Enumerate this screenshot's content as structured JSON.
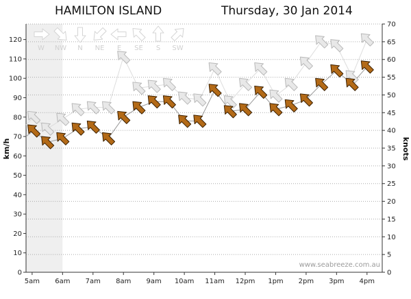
{
  "header": {
    "station": "HAMILTON ISLAND",
    "date": "Thursday, 30 Jan 2014"
  },
  "watermark": "www.seabreeze.com.au",
  "legend": {
    "directions": [
      "W",
      "NW",
      "N",
      "NE",
      "E",
      "SE",
      "S",
      "SW"
    ],
    "direction_degrees": [
      270,
      315,
      0,
      45,
      90,
      135,
      180,
      225
    ]
  },
  "chart_data": {
    "type": "line",
    "x_tick_labels": [
      "5am",
      "6am",
      "7am",
      "8am",
      "9am",
      "10am",
      "11am",
      "12pm",
      "1pm",
      "2pm",
      "3pm",
      "4pm"
    ],
    "xlim": [
      4.8,
      16.5
    ],
    "ylabel_left": "km/h",
    "ylabel_right": "knots",
    "ylim_left": [
      0,
      128
    ],
    "ylim_right": [
      0,
      70
    ],
    "yticks_left": [
      0,
      10,
      20,
      30,
      40,
      50,
      60,
      70,
      80,
      90,
      100,
      110,
      120
    ],
    "yticks_right": [
      0,
      5,
      10,
      15,
      20,
      25,
      30,
      35,
      40,
      45,
      50,
      55,
      60,
      65,
      70
    ],
    "grid": true,
    "shaded_range": [
      4.8,
      6.0
    ],
    "colors": {
      "average_arrow": "#b36a17",
      "gust_arrow": "#e8e8e8",
      "average_line": "#999999",
      "gust_line": "#dddddd",
      "shade": "#efefef",
      "grid": "#aaaaaa"
    },
    "series": [
      {
        "role": "average",
        "x": [
          4.8,
          5.05,
          5.5,
          6.0,
          6.5,
          7.0,
          7.5,
          8.0,
          8.5,
          9.0,
          9.5,
          10.0,
          10.5,
          11.0,
          11.5,
          12.0,
          12.5,
          13.0,
          13.5,
          14.0,
          14.5,
          15.0,
          15.5,
          16.0
        ],
        "y": [
          70,
          73,
          67,
          69,
          74,
          75,
          69,
          80,
          85,
          88,
          88,
          78,
          78,
          94,
          83,
          84,
          93,
          84,
          86,
          89,
          97,
          104,
          97,
          106
        ],
        "direction_deg": [
          135,
          135,
          135,
          135,
          135,
          135,
          135,
          135,
          135,
          135,
          135,
          135,
          135,
          135,
          135,
          135,
          135,
          135,
          135,
          135,
          135,
          135,
          135,
          135
        ]
      },
      {
        "role": "gust",
        "x": [
          4.8,
          5.05,
          5.5,
          6.0,
          6.5,
          7.0,
          7.5,
          8.0,
          8.5,
          9.0,
          9.5,
          10.0,
          10.5,
          11.0,
          11.5,
          12.0,
          12.5,
          13.0,
          13.5,
          14.0,
          14.5,
          15.0,
          15.5,
          16.0
        ],
        "y": [
          76,
          80,
          74,
          79,
          84,
          85,
          85,
          111,
          95,
          96,
          97,
          90,
          89,
          105,
          88,
          97,
          105,
          91,
          97,
          108,
          119,
          117,
          101,
          120
        ],
        "direction_deg": [
          135,
          135,
          135,
          135,
          135,
          135,
          135,
          135,
          135,
          135,
          135,
          135,
          135,
          135,
          135,
          135,
          135,
          135,
          135,
          135,
          135,
          135,
          135,
          135
        ]
      }
    ]
  }
}
